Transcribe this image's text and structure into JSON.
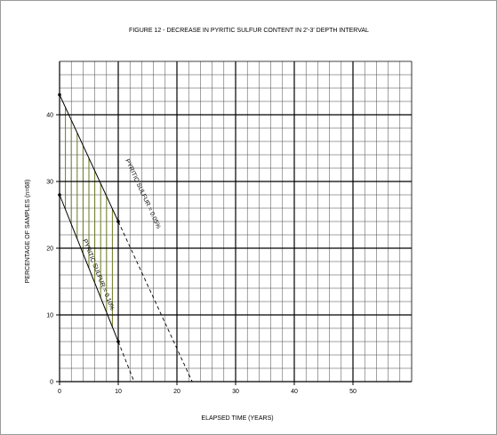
{
  "chart_data": {
    "type": "line",
    "title": "FIGURE 12 - DECREASE IN PYRITIC SULFUR CONTENT IN 2'-3' DEPTH INTERVAL",
    "xlabel": "ELAPSED TIME (YEARS)",
    "ylabel": "PERCENTAGE OF SAMPLES (n=68)",
    "xlim": [
      0,
      60
    ],
    "ylim": [
      0,
      48
    ],
    "x_ticks": [
      "0",
      "10",
      "20",
      "30",
      "40",
      "50"
    ],
    "y_ticks": [
      "0",
      "10",
      "20",
      "30",
      "40"
    ],
    "grid": true,
    "series": [
      {
        "name": "PYRITIC SULFUR = 0.05%",
        "solid": [
          [
            0,
            43
          ],
          [
            10,
            24
          ]
        ],
        "dashed": [
          [
            10,
            24
          ],
          [
            22.6,
            0
          ]
        ],
        "color": "#000000"
      },
      {
        "name": "PYRITIC SULFUR = 0.10%",
        "solid": [
          [
            0,
            28
          ],
          [
            10,
            6
          ]
        ],
        "dashed": [
          [
            10,
            6
          ],
          [
            12.7,
            0
          ]
        ],
        "color": "#000000"
      }
    ],
    "shading": {
      "color": "#6b7a1e"
    }
  }
}
